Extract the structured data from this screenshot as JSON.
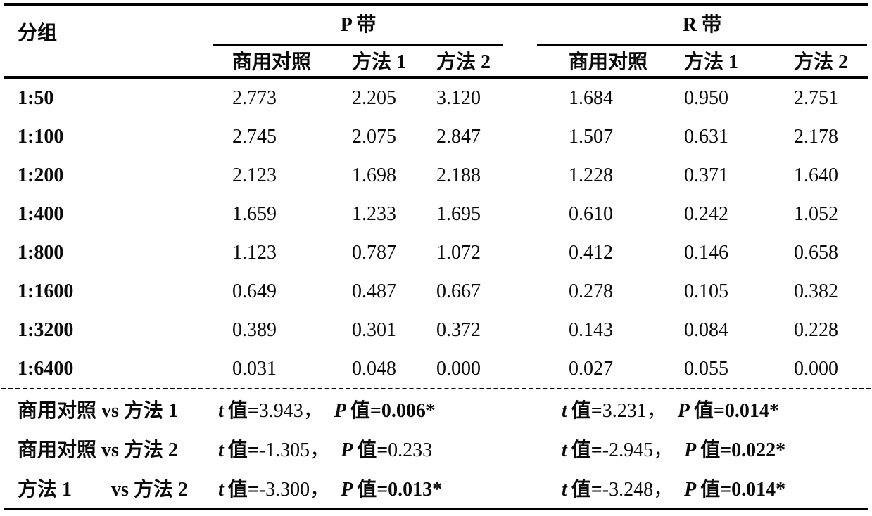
{
  "table": {
    "group_header": "分组",
    "bands": [
      {
        "label": "P 带"
      },
      {
        "label": "R 带"
      }
    ],
    "sub_headers": [
      "商用对照",
      "方法 1",
      "方法 2",
      "商用对照",
      "方法 1",
      "方法 2"
    ],
    "rows": [
      {
        "group": "1:50",
        "values": [
          "2.773",
          "2.205",
          "3.120",
          "1.684",
          "0.950",
          "2.751"
        ]
      },
      {
        "group": "1:100",
        "values": [
          "2.745",
          "2.075",
          "2.847",
          "1.507",
          "0.631",
          "2.178"
        ]
      },
      {
        "group": "1:200",
        "values": [
          "2.123",
          "1.698",
          "2.188",
          "1.228",
          "0.371",
          "1.640"
        ]
      },
      {
        "group": "1:400",
        "values": [
          "1.659",
          "1.233",
          "1.695",
          "0.610",
          "0.242",
          "1.052"
        ]
      },
      {
        "group": "1:800",
        "values": [
          "1.123",
          "0.787",
          "1.072",
          "0.412",
          "0.146",
          "0.658"
        ]
      },
      {
        "group": "1:1600",
        "values": [
          "0.649",
          "0.487",
          "0.667",
          "0.278",
          "0.105",
          "0.382"
        ]
      },
      {
        "group": "1:3200",
        "values": [
          "0.389",
          "0.301",
          "0.372",
          "0.143",
          "0.084",
          "0.228"
        ]
      },
      {
        "group": "1:6400",
        "values": [
          "0.031",
          "0.048",
          "0.000",
          "0.027",
          "0.055",
          "0.000"
        ]
      }
    ]
  },
  "stats": {
    "t_sym": "t",
    "p_sym": "P",
    "eq_word": "值=",
    "comma": "，",
    "rows": [
      {
        "label": "商用对照 vs 方法 1",
        "left": {
          "t": "3.943",
          "p": "0.006*"
        },
        "right": {
          "t": "3.231",
          "p": "0.014*"
        }
      },
      {
        "label": "商用对照 vs 方法 2",
        "left": {
          "t": "-1.305",
          "p": "0.233"
        },
        "right": {
          "t": "-2.945",
          "p": "0.022*"
        }
      },
      {
        "label": "方法 1        vs 方法 2",
        "left": {
          "t": "-3.300",
          "p": "0.013*"
        },
        "right": {
          "t": "-3.248",
          "p": "0.014*"
        }
      }
    ]
  }
}
